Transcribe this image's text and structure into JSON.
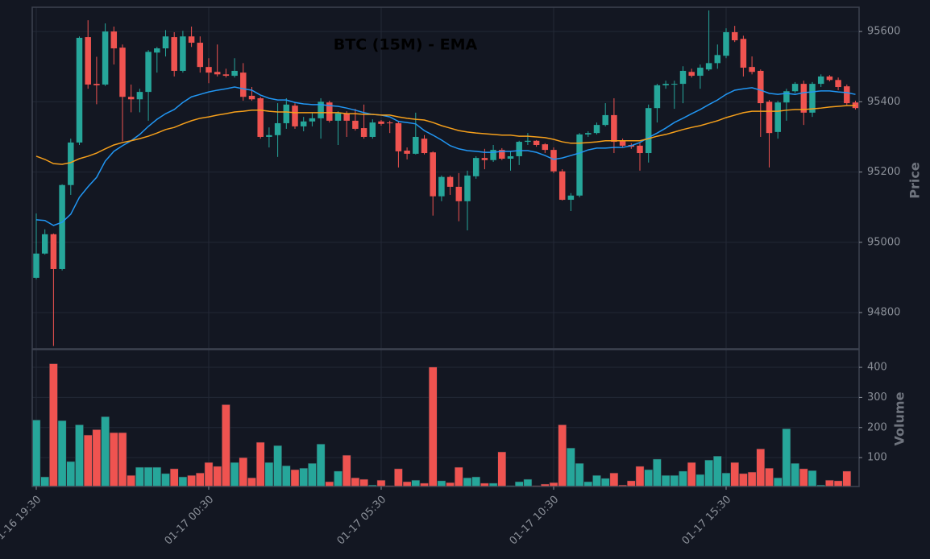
{
  "chart_data": {
    "type": "candlestick",
    "title": "BTC (15M) - EMA",
    "ylabel": "Price",
    "up_color": "#26a69a",
    "down_color": "#ef5350",
    "grid": true,
    "ylim": [
      94697,
      95669
    ],
    "yticks": [
      94800,
      95000,
      95200,
      95400,
      95600
    ],
    "categories": [
      "01-16 19:30",
      null,
      null,
      null,
      null,
      null,
      null,
      null,
      null,
      null,
      null,
      null,
      null,
      null,
      null,
      null,
      null,
      null,
      null,
      null,
      "01-17 00:30",
      null,
      null,
      null,
      null,
      null,
      null,
      null,
      null,
      null,
      null,
      null,
      null,
      null,
      null,
      null,
      null,
      null,
      null,
      null,
      "01-17 05:30",
      null,
      null,
      null,
      null,
      null,
      null,
      null,
      null,
      null,
      null,
      null,
      null,
      null,
      null,
      null,
      null,
      null,
      null,
      null,
      "01-17 10:30",
      null,
      null,
      null,
      null,
      null,
      null,
      null,
      null,
      null,
      null,
      null,
      null,
      null,
      null,
      null,
      null,
      null,
      null,
      null,
      "01-17 15:30",
      null,
      null,
      null,
      null,
      null,
      null,
      null,
      null,
      null,
      null,
      null,
      null,
      null,
      null,
      null
    ],
    "open": [
      94899,
      94968,
      95023,
      94924,
      95163,
      95284,
      95584,
      95451,
      95449,
      95600,
      95554,
      95414,
      95407,
      95428,
      95540,
      95552,
      95584,
      95488,
      95586,
      95568,
      95499,
      95485,
      95478,
      95474,
      95483,
      95417,
      95410,
      95300,
      95305,
      95339,
      95389,
      95330,
      95344,
      95353,
      95398,
      95346,
      95367,
      95346,
      95325,
      95300,
      95344,
      95341,
      95339,
      95261,
      95252,
      95295,
      95256,
      95131,
      95186,
      95158,
      95117,
      95188,
      95240,
      95234,
      95263,
      95238,
      95245,
      95286,
      95289,
      95279,
      95263,
      95202,
      95121,
      95133,
      95307,
      95311,
      95334,
      95362,
      95289,
      95277,
      95275,
      95254,
      95382,
      95447,
      95449,
      95451,
      95485,
      95474,
      95492,
      95510,
      95531,
      95598,
      95579,
      95499,
      95488,
      95400,
      95314,
      95398,
      95430,
      95451,
      95369,
      95451,
      95472,
      95462,
      95444,
      95398
    ],
    "high": [
      95082,
      95037,
      95025,
      95165,
      95295,
      95586,
      95632,
      95528,
      95623,
      95614,
      95563,
      95449,
      95437,
      95547,
      95556,
      95604,
      95598,
      95602,
      95614,
      95586,
      95524,
      95563,
      95494,
      95524,
      95510,
      95442,
      95414,
      95327,
      95396,
      95410,
      95396,
      95357,
      95369,
      95410,
      95403,
      95373,
      95373,
      95380,
      95392,
      95350,
      95348,
      95346,
      95346,
      95270,
      95369,
      95305,
      95259,
      95190,
      95190,
      95197,
      95204,
      95245,
      95266,
      95277,
      95268,
      95259,
      95289,
      95311,
      95291,
      95282,
      95270,
      95208,
      95140,
      95311,
      95316,
      95341,
      95396,
      95410,
      95295,
      95282,
      95282,
      95392,
      95451,
      95460,
      95460,
      95501,
      95494,
      95506,
      95660,
      95563,
      95609,
      95616,
      95588,
      95529,
      95492,
      95405,
      95403,
      95437,
      95456,
      95460,
      95456,
      95478,
      95476,
      95469,
      95449,
      95403
    ],
    "low": [
      94895,
      94965,
      94705,
      94920,
      95135,
      95277,
      95437,
      95393,
      95445,
      95506,
      95288,
      95370,
      95370,
      95346,
      95483,
      95529,
      95472,
      95483,
      95556,
      95483,
      95453,
      95472,
      95469,
      95469,
      95403,
      95403,
      95295,
      95270,
      95243,
      95323,
      95323,
      95316,
      95330,
      95295,
      95341,
      95277,
      95300,
      95318,
      95295,
      95295,
      95332,
      95311,
      95213,
      95236,
      95250,
      95250,
      95076,
      95117,
      95135,
      95060,
      95034,
      95181,
      95208,
      95229,
      95234,
      95204,
      95220,
      95277,
      95272,
      95254,
      95197,
      95119,
      95089,
      95128,
      95300,
      95307,
      95330,
      95254,
      95270,
      95266,
      95204,
      95227,
      95341,
      95437,
      95380,
      95396,
      95469,
      95437,
      95488,
      95494,
      95524,
      95570,
      95472,
      95478,
      95300,
      95213,
      95295,
      95346,
      95425,
      95334,
      95357,
      95442,
      95458,
      95433,
      95391,
      95378
    ],
    "close": [
      94968,
      95023,
      94924,
      95163,
      95284,
      95582,
      95449,
      95447,
      95600,
      95552,
      95414,
      95407,
      95428,
      95542,
      95552,
      95586,
      95488,
      95586,
      95568,
      95499,
      95483,
      95478,
      95474,
      95488,
      95414,
      95407,
      95300,
      95305,
      95339,
      95392,
      95330,
      95344,
      95353,
      95400,
      95346,
      95367,
      95346,
      95323,
      95300,
      95341,
      95337,
      95339,
      95259,
      95252,
      95300,
      95254,
      95131,
      95186,
      95158,
      95117,
      95190,
      95240,
      95234,
      95263,
      95238,
      95245,
      95286,
      95289,
      95277,
      95263,
      95202,
      95121,
      95133,
      95307,
      95311,
      95334,
      95362,
      95286,
      95275,
      95272,
      95254,
      95382,
      95447,
      95451,
      95451,
      95488,
      95474,
      95497,
      95510,
      95533,
      95598,
      95575,
      95497,
      95485,
      95396,
      95311,
      95398,
      95430,
      95451,
      95369,
      95451,
      95472,
      95462,
      95442,
      95396,
      95382
    ],
    "ema": [
      {
        "color": "#2196f3",
        "values": [
          95064,
          95062,
          95048,
          95057,
          95080,
          95128,
          95158,
          95185,
          95231,
          95259,
          95275,
          95289,
          95307,
          95330,
          95350,
          95366,
          95378,
          95398,
          95414,
          95421,
          95428,
          95433,
          95437,
          95442,
          95437,
          95433,
          95419,
          95410,
          95405,
          95405,
          95398,
          95394,
          95392,
          95392,
          95389,
          95387,
          95382,
          95376,
          95369,
          95364,
          95362,
          95357,
          95344,
          95341,
          95337,
          95318,
          95305,
          95291,
          95275,
          95266,
          95261,
          95259,
          95256,
          95256,
          95259,
          95259,
          95261,
          95261,
          95256,
          95247,
          95236,
          95240,
          95247,
          95254,
          95263,
          95268,
          95268,
          95270,
          95270,
          95275,
          95284,
          95298,
          95311,
          95325,
          95341,
          95353,
          95366,
          95378,
          95392,
          95405,
          95421,
          95433,
          95437,
          95440,
          95433,
          95424,
          95421,
          95424,
          95421,
          95426,
          95428,
          95431,
          95431,
          95428,
          95426,
          95421
        ]
      },
      {
        "color": "#f59f1b",
        "values": [
          95245,
          95236,
          95224,
          95222,
          95227,
          95238,
          95245,
          95254,
          95266,
          95277,
          95284,
          95289,
          95295,
          95302,
          95311,
          95321,
          95327,
          95337,
          95346,
          95353,
          95357,
          95362,
          95366,
          95371,
          95373,
          95376,
          95376,
          95373,
          95371,
          95371,
          95369,
          95369,
          95369,
          95369,
          95369,
          95369,
          95366,
          95366,
          95364,
          95364,
          95362,
          95362,
          95357,
          95353,
          95350,
          95348,
          95341,
          95332,
          95325,
          95318,
          95314,
          95311,
          95309,
          95307,
          95305,
          95305,
          95302,
          95302,
          95300,
          95298,
          95293,
          95286,
          95282,
          95282,
          95284,
          95286,
          95289,
          95289,
          95289,
          95289,
          95289,
          95295,
          95302,
          95307,
          95314,
          95321,
          95327,
          95332,
          95339,
          95346,
          95355,
          95362,
          95369,
          95373,
          95373,
          95373,
          95373,
          95376,
          95378,
          95378,
          95380,
          95382,
          95385,
          95387,
          95389,
          95389
        ]
      }
    ],
    "volume": {
      "ylabel": "Volume",
      "ylim": [
        4,
        459
      ],
      "yticks": [
        100,
        200,
        300,
        400
      ],
      "values": [
        225,
        36,
        412,
        223,
        87,
        209,
        175,
        193,
        236,
        183,
        183,
        41,
        68,
        68,
        68,
        47,
        63,
        36,
        41,
        49,
        84,
        71,
        276,
        84,
        100,
        33,
        151,
        84,
        140,
        73,
        60,
        65,
        81,
        145,
        20,
        55,
        108,
        33,
        28,
        9,
        25,
        7,
        63,
        20,
        25,
        15,
        401,
        23,
        17,
        68,
        33,
        36,
        15,
        15,
        119,
        7,
        20,
        28,
        7,
        12,
        17,
        209,
        132,
        81,
        20,
        41,
        31,
        49,
        9,
        23,
        71,
        60,
        95,
        41,
        41,
        55,
        84,
        44,
        92,
        105,
        49,
        84,
        47,
        52,
        129,
        65,
        33,
        196,
        81,
        63,
        57,
        9,
        25,
        23,
        55,
        5
      ]
    }
  }
}
